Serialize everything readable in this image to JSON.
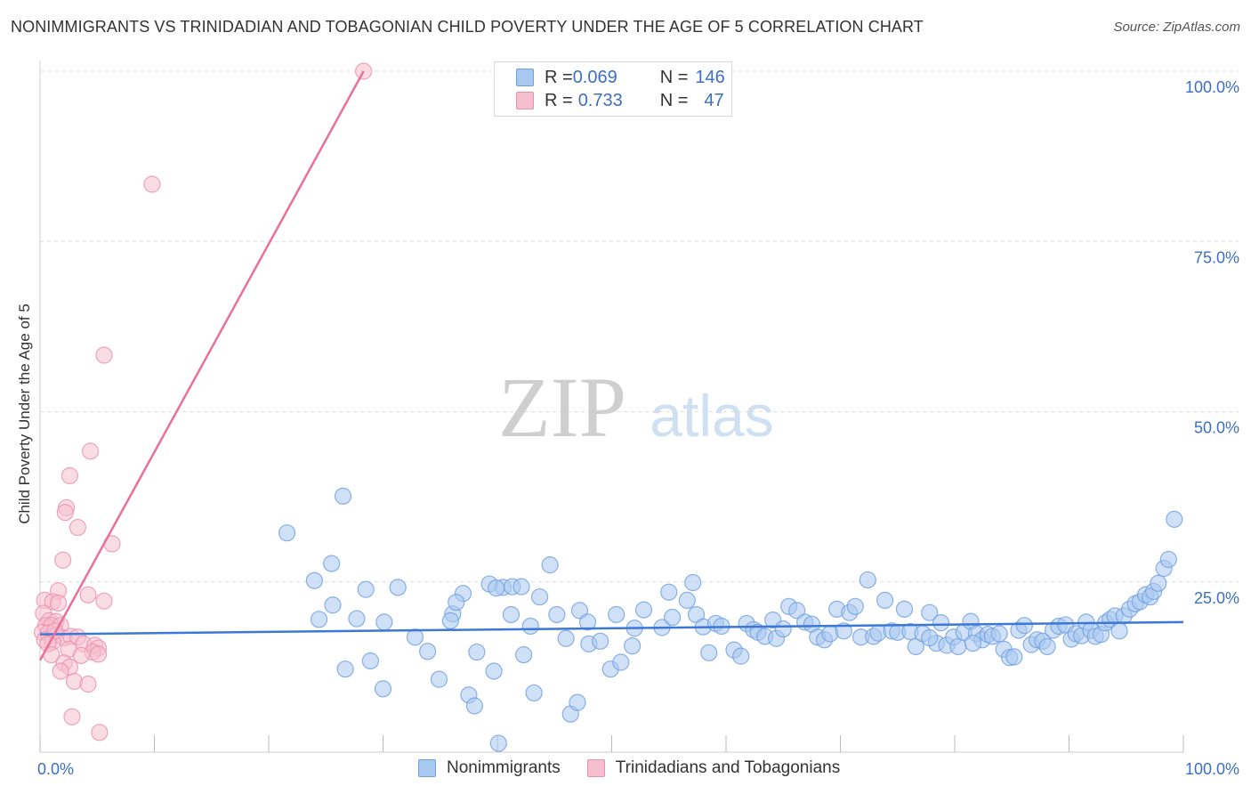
{
  "title": "NONIMMIGRANTS VS TRINIDADIAN AND TOBAGONIAN CHILD POVERTY UNDER THE AGE OF 5 CORRELATION CHART",
  "source": "Source: ZipAtlas.com",
  "watermark": {
    "zip": "ZIP",
    "atlas": "atlas"
  },
  "colors": {
    "blue": "#3c78d8",
    "blue_fill": "#a9c8f0",
    "pink": "#e8709a",
    "pink_fill": "#f6bfd0",
    "grid": "#dddddd",
    "tick_text": "#3b6fc6"
  },
  "legend": {
    "rows": [
      {
        "r_label": "R = ",
        "r_value": "0.069",
        "n_label": "N = ",
        "n_value": "146"
      },
      {
        "r_label": "R = ",
        "r_value": "0.733",
        "n_label": "N = ",
        "n_value": "47"
      }
    ]
  },
  "bottom_legend": [
    "Nonimmigrants",
    "Trinidadians and Tobagonians"
  ],
  "chart_data": {
    "type": "scatter",
    "title": "NONIMMIGRANTS VS TRINIDADIAN AND TOBAGONIAN CHILD POVERTY UNDER THE AGE OF 5 CORRELATION CHART",
    "xlabel": "",
    "ylabel": "Child Poverty Under the Age of 5",
    "xlim": [
      0,
      100
    ],
    "ylim": [
      0,
      100
    ],
    "x_tick_labels": [
      "0.0%",
      "100.0%"
    ],
    "y_ticks": [
      25,
      50,
      75,
      100
    ],
    "y_tick_labels": [
      "25.0%",
      "50.0%",
      "75.0%",
      "100.0%"
    ],
    "series": [
      {
        "name": "Nonimmigrants",
        "r": 0.069,
        "n": 146,
        "trend": {
          "x0": 0,
          "y0": 17.3,
          "x1": 100,
          "y1": 19.1
        },
        "points": [
          [
            21.6,
            32.2
          ],
          [
            26.5,
            37.6
          ],
          [
            25.5,
            27.7
          ],
          [
            24.0,
            25.2
          ],
          [
            25.6,
            21.6
          ],
          [
            24.4,
            19.5
          ],
          [
            28.5,
            23.9
          ],
          [
            27.7,
            19.6
          ],
          [
            30.1,
            19.1
          ],
          [
            31.3,
            24.2
          ],
          [
            28.9,
            13.4
          ],
          [
            26.7,
            12.2
          ],
          [
            30.0,
            9.3
          ],
          [
            32.8,
            16.9
          ],
          [
            34.9,
            10.7
          ],
          [
            33.9,
            14.8
          ],
          [
            36.1,
            20.3
          ],
          [
            37.0,
            23.3
          ],
          [
            35.9,
            19.3
          ],
          [
            36.4,
            22.0
          ],
          [
            38.2,
            14.7
          ],
          [
            39.3,
            24.7
          ],
          [
            40.5,
            24.2
          ],
          [
            41.3,
            24.3
          ],
          [
            39.9,
            24.1
          ],
          [
            42.1,
            24.3
          ],
          [
            37.5,
            8.4
          ],
          [
            38.0,
            6.8
          ],
          [
            39.7,
            11.9
          ],
          [
            40.1,
            1.3
          ],
          [
            41.2,
            20.2
          ],
          [
            42.3,
            14.3
          ],
          [
            43.7,
            22.8
          ],
          [
            45.2,
            20.2
          ],
          [
            42.9,
            18.5
          ],
          [
            44.6,
            27.5
          ],
          [
            46.0,
            16.7
          ],
          [
            43.2,
            8.7
          ],
          [
            46.4,
            5.6
          ],
          [
            47.0,
            7.3
          ],
          [
            47.2,
            20.8
          ],
          [
            47.9,
            19.1
          ],
          [
            48.0,
            15.9
          ],
          [
            49.0,
            16.3
          ],
          [
            50.4,
            20.2
          ],
          [
            49.9,
            12.2
          ],
          [
            50.8,
            13.2
          ],
          [
            51.8,
            15.6
          ],
          [
            52.0,
            18.2
          ],
          [
            52.8,
            20.9
          ],
          [
            54.4,
            18.3
          ],
          [
            55.0,
            23.5
          ],
          [
            55.3,
            19.8
          ],
          [
            56.6,
            22.3
          ],
          [
            57.1,
            24.9
          ],
          [
            57.4,
            20.2
          ],
          [
            58.0,
            18.4
          ],
          [
            58.5,
            14.6
          ],
          [
            59.1,
            18.9
          ],
          [
            59.6,
            18.5
          ],
          [
            60.7,
            15.0
          ],
          [
            61.3,
            14.1
          ],
          [
            61.8,
            18.9
          ],
          [
            62.4,
            18.0
          ],
          [
            62.8,
            17.6
          ],
          [
            63.4,
            17.0
          ],
          [
            64.1,
            19.4
          ],
          [
            64.4,
            16.7
          ],
          [
            65.0,
            18.1
          ],
          [
            65.5,
            21.4
          ],
          [
            66.2,
            20.8
          ],
          [
            66.9,
            19.1
          ],
          [
            67.5,
            18.8
          ],
          [
            68.0,
            16.9
          ],
          [
            68.6,
            16.5
          ],
          [
            69.1,
            17.4
          ],
          [
            69.7,
            21.0
          ],
          [
            70.3,
            17.8
          ],
          [
            70.8,
            20.5
          ],
          [
            71.3,
            21.4
          ],
          [
            71.8,
            16.9
          ],
          [
            72.4,
            25.3
          ],
          [
            72.9,
            17.0
          ],
          [
            73.3,
            17.5
          ],
          [
            73.9,
            22.3
          ],
          [
            74.5,
            17.8
          ],
          [
            75.0,
            17.6
          ],
          [
            75.6,
            21.0
          ],
          [
            76.1,
            17.7
          ],
          [
            76.6,
            15.5
          ],
          [
            77.2,
            17.4
          ],
          [
            77.8,
            20.5
          ],
          [
            78.4,
            16.0
          ],
          [
            78.8,
            19.0
          ],
          [
            79.3,
            15.7
          ],
          [
            79.9,
            16.9
          ],
          [
            80.3,
            15.5
          ],
          [
            80.8,
            17.6
          ],
          [
            81.4,
            19.2
          ],
          [
            81.9,
            17.4
          ],
          [
            82.4,
            16.5
          ],
          [
            82.9,
            17.3
          ],
          [
            83.3,
            17.0
          ],
          [
            83.9,
            17.4
          ],
          [
            84.3,
            15.1
          ],
          [
            84.8,
            13.9
          ],
          [
            85.2,
            14.0
          ],
          [
            85.6,
            17.9
          ],
          [
            86.1,
            18.6
          ],
          [
            86.7,
            15.8
          ],
          [
            87.2,
            16.5
          ],
          [
            87.7,
            16.3
          ],
          [
            88.1,
            15.5
          ],
          [
            88.6,
            17.9
          ],
          [
            89.1,
            18.5
          ],
          [
            89.7,
            18.7
          ],
          [
            90.2,
            16.6
          ],
          [
            90.6,
            17.4
          ],
          [
            91.1,
            17.1
          ],
          [
            91.5,
            19.1
          ],
          [
            91.9,
            17.9
          ],
          [
            92.3,
            17.0
          ],
          [
            92.8,
            17.3
          ],
          [
            93.2,
            19.0
          ],
          [
            93.6,
            19.5
          ],
          [
            94.0,
            20.0
          ],
          [
            94.4,
            17.8
          ],
          [
            94.8,
            20.0
          ],
          [
            95.3,
            21.0
          ],
          [
            95.8,
            21.8
          ],
          [
            96.2,
            22.1
          ],
          [
            96.7,
            23.1
          ],
          [
            97.1,
            22.8
          ],
          [
            97.4,
            23.6
          ],
          [
            97.8,
            24.8
          ],
          [
            98.3,
            27.0
          ],
          [
            98.7,
            28.3
          ],
          [
            99.2,
            34.2
          ],
          [
            77.8,
            16.8
          ],
          [
            81.6,
            16.0
          ]
        ]
      },
      {
        "name": "Trinidadians and Tobagonians",
        "r": 0.733,
        "n": 47,
        "trend": {
          "x0": 0,
          "y0": 13.5,
          "x1": 28.3,
          "y1": 100
        },
        "points": [
          [
            28.3,
            100
          ],
          [
            9.8,
            83.4
          ],
          [
            5.6,
            58.3
          ],
          [
            4.4,
            44.2
          ],
          [
            2.6,
            40.6
          ],
          [
            2.3,
            35.9
          ],
          [
            3.3,
            33.0
          ],
          [
            2.2,
            35.2
          ],
          [
            6.3,
            30.6
          ],
          [
            2.0,
            28.2
          ],
          [
            1.6,
            23.7
          ],
          [
            4.2,
            23.1
          ],
          [
            5.6,
            22.2
          ],
          [
            0.4,
            22.3
          ],
          [
            1.1,
            22.1
          ],
          [
            1.6,
            21.9
          ],
          [
            0.3,
            20.4
          ],
          [
            0.8,
            19.3
          ],
          [
            1.4,
            19.2
          ],
          [
            0.5,
            18.6
          ],
          [
            1.0,
            18.6
          ],
          [
            1.8,
            18.6
          ],
          [
            0.2,
            17.6
          ],
          [
            0.7,
            17.5
          ],
          [
            1.4,
            17.2
          ],
          [
            2.1,
            16.8
          ],
          [
            2.7,
            17.0
          ],
          [
            3.3,
            16.9
          ],
          [
            0.4,
            16.5
          ],
          [
            1.1,
            16.2
          ],
          [
            0.7,
            15.9
          ],
          [
            3.8,
            15.9
          ],
          [
            4.8,
            15.7
          ],
          [
            5.1,
            15.3
          ],
          [
            2.5,
            15.1
          ],
          [
            4.6,
            14.7
          ],
          [
            5.1,
            14.4
          ],
          [
            1.0,
            14.3
          ],
          [
            3.6,
            14.2
          ],
          [
            2.1,
            13.1
          ],
          [
            2.6,
            12.5
          ],
          [
            1.8,
            11.9
          ],
          [
            3.0,
            10.4
          ],
          [
            4.2,
            10.0
          ],
          [
            2.8,
            5.2
          ],
          [
            5.2,
            2.9
          ],
          [
            1.3,
            17.8
          ]
        ]
      }
    ]
  }
}
